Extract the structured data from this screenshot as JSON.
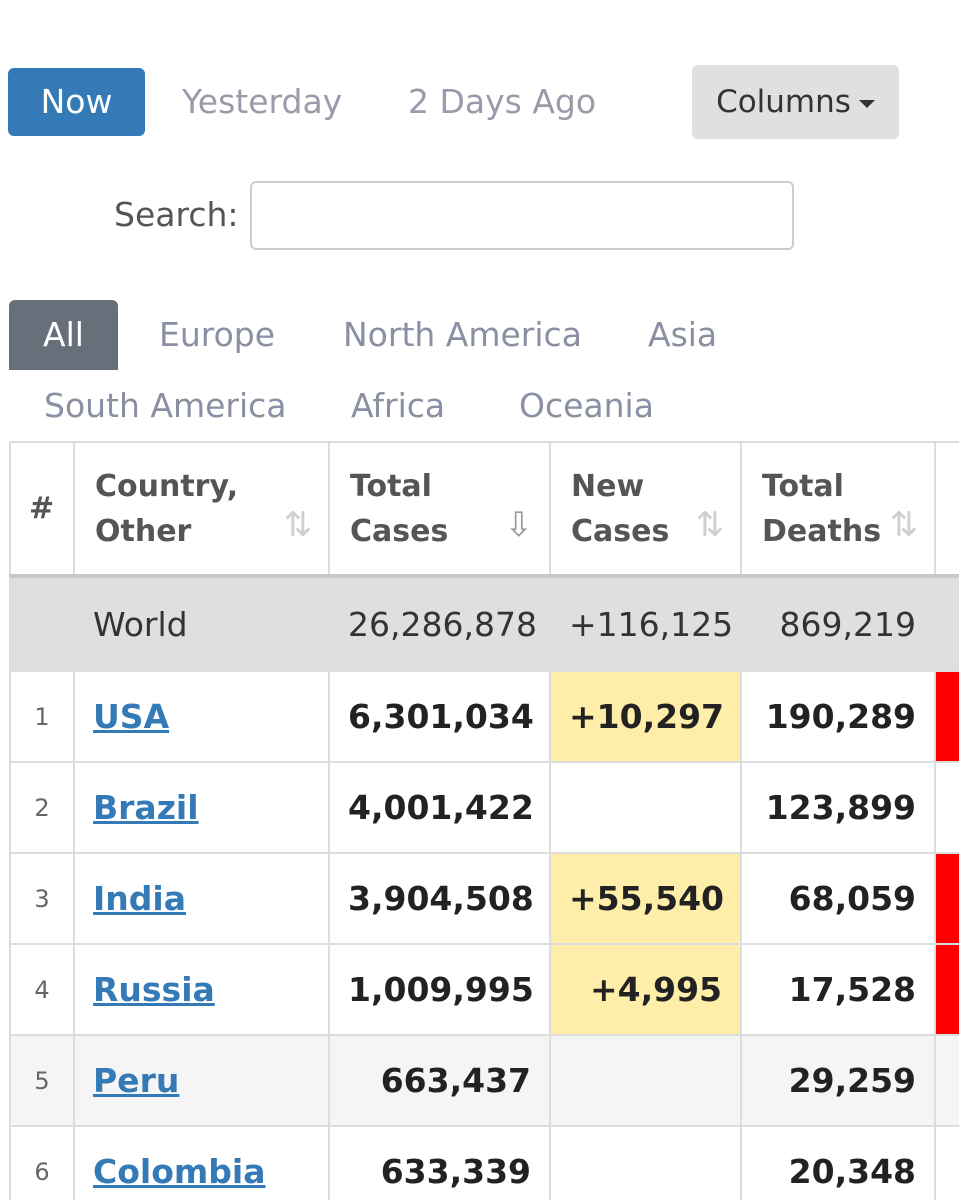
{
  "day_tabs": [
    {
      "label": "Now",
      "active": true
    },
    {
      "label": "Yesterday",
      "active": false
    },
    {
      "label": "2 Days Ago",
      "active": false
    }
  ],
  "columns_button": {
    "label": "Columns"
  },
  "search": {
    "label": "Search:",
    "value": "",
    "placeholder": ""
  },
  "region_tabs": [
    {
      "label": "All",
      "active": true
    },
    {
      "label": "Europe"
    },
    {
      "label": "North America"
    },
    {
      "label": "Asia"
    },
    {
      "label": "South America"
    },
    {
      "label": "Africa"
    },
    {
      "label": "Oceania"
    }
  ],
  "table": {
    "headers": {
      "num": "#",
      "country_line1": "Country,",
      "country_line2": "Other",
      "total_cases_line1": "Total",
      "total_cases_line2": "Cases",
      "new_cases_line1": "New",
      "new_cases_line2": "Cases",
      "total_deaths_line1": "Total",
      "total_deaths_line2": "Deaths"
    },
    "world": {
      "country": "World",
      "total_cases": "26,286,878",
      "new_cases": "+116,125",
      "total_deaths": "869,219"
    },
    "rows": [
      {
        "rank": "1",
        "country": "USA",
        "total_cases": "6,301,034",
        "new_cases": "+10,297",
        "total_deaths": "190,289",
        "new_deaths_flag": true
      },
      {
        "rank": "2",
        "country": "Brazil",
        "total_cases": "4,001,422",
        "new_cases": "",
        "total_deaths": "123,899",
        "new_deaths_flag": false
      },
      {
        "rank": "3",
        "country": "India",
        "total_cases": "3,904,508",
        "new_cases": "+55,540",
        "total_deaths": "68,059",
        "new_deaths_flag": true
      },
      {
        "rank": "4",
        "country": "Russia",
        "total_cases": "1,009,995",
        "new_cases": "+4,995",
        "total_deaths": "17,528",
        "new_deaths_flag": true
      },
      {
        "rank": "5",
        "country": "Peru",
        "total_cases": "663,437",
        "new_cases": "",
        "total_deaths": "29,259",
        "new_deaths_flag": false
      },
      {
        "rank": "6",
        "country": "Colombia",
        "total_cases": "633,339",
        "new_cases": "",
        "total_deaths": "20,348",
        "new_deaths_flag": false
      }
    ]
  },
  "colors": {
    "primary": "#337ab7",
    "active_region": "#676f7a",
    "highlight_new": "#ffeeaa",
    "highlight_death": "#ff0000"
  }
}
